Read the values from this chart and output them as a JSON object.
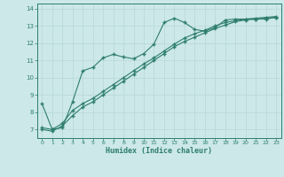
{
  "xlabel": "Humidex (Indice chaleur)",
  "bg_color": "#cce8e8",
  "line_color": "#2e7d6e",
  "grid_color": "#b8d8d8",
  "xlim": [
    -0.5,
    23.5
  ],
  "ylim": [
    6.5,
    14.3
  ],
  "xticks": [
    0,
    1,
    2,
    3,
    4,
    5,
    6,
    7,
    8,
    9,
    10,
    11,
    12,
    13,
    14,
    15,
    16,
    17,
    18,
    19,
    20,
    21,
    22,
    23
  ],
  "yticks": [
    7,
    8,
    9,
    10,
    11,
    12,
    13,
    14
  ],
  "line1_x": [
    0,
    1,
    2,
    3,
    4,
    5,
    6,
    7,
    8,
    9,
    10,
    11,
    12,
    13,
    14,
    15,
    16,
    17,
    18,
    19,
    20,
    21,
    22,
    23
  ],
  "line1_y": [
    8.5,
    7.0,
    7.1,
    8.6,
    10.4,
    10.6,
    11.15,
    11.35,
    11.2,
    11.1,
    11.4,
    11.95,
    13.2,
    13.45,
    13.2,
    12.8,
    12.7,
    12.9,
    13.35,
    13.4,
    13.4,
    13.4,
    13.4,
    13.5
  ],
  "line2_x": [
    0,
    1,
    2,
    3,
    4,
    5,
    6,
    7,
    8,
    9,
    10,
    11,
    12,
    13,
    14,
    15,
    16,
    17,
    18,
    19,
    20,
    21,
    22,
    23
  ],
  "line2_y": [
    7.0,
    6.9,
    7.2,
    7.8,
    8.3,
    8.6,
    9.0,
    9.4,
    9.8,
    10.2,
    10.6,
    11.0,
    11.4,
    11.8,
    12.1,
    12.35,
    12.6,
    12.85,
    13.05,
    13.25,
    13.35,
    13.4,
    13.45,
    13.5
  ],
  "line3_x": [
    0,
    1,
    2,
    3,
    4,
    5,
    6,
    7,
    8,
    9,
    10,
    11,
    12,
    13,
    14,
    15,
    16,
    17,
    18,
    19,
    20,
    21,
    22,
    23
  ],
  "line3_y": [
    7.1,
    7.0,
    7.35,
    8.1,
    8.5,
    8.8,
    9.2,
    9.6,
    10.0,
    10.4,
    10.8,
    11.15,
    11.55,
    11.95,
    12.3,
    12.55,
    12.75,
    13.0,
    13.2,
    13.3,
    13.4,
    13.45,
    13.5,
    13.55
  ]
}
